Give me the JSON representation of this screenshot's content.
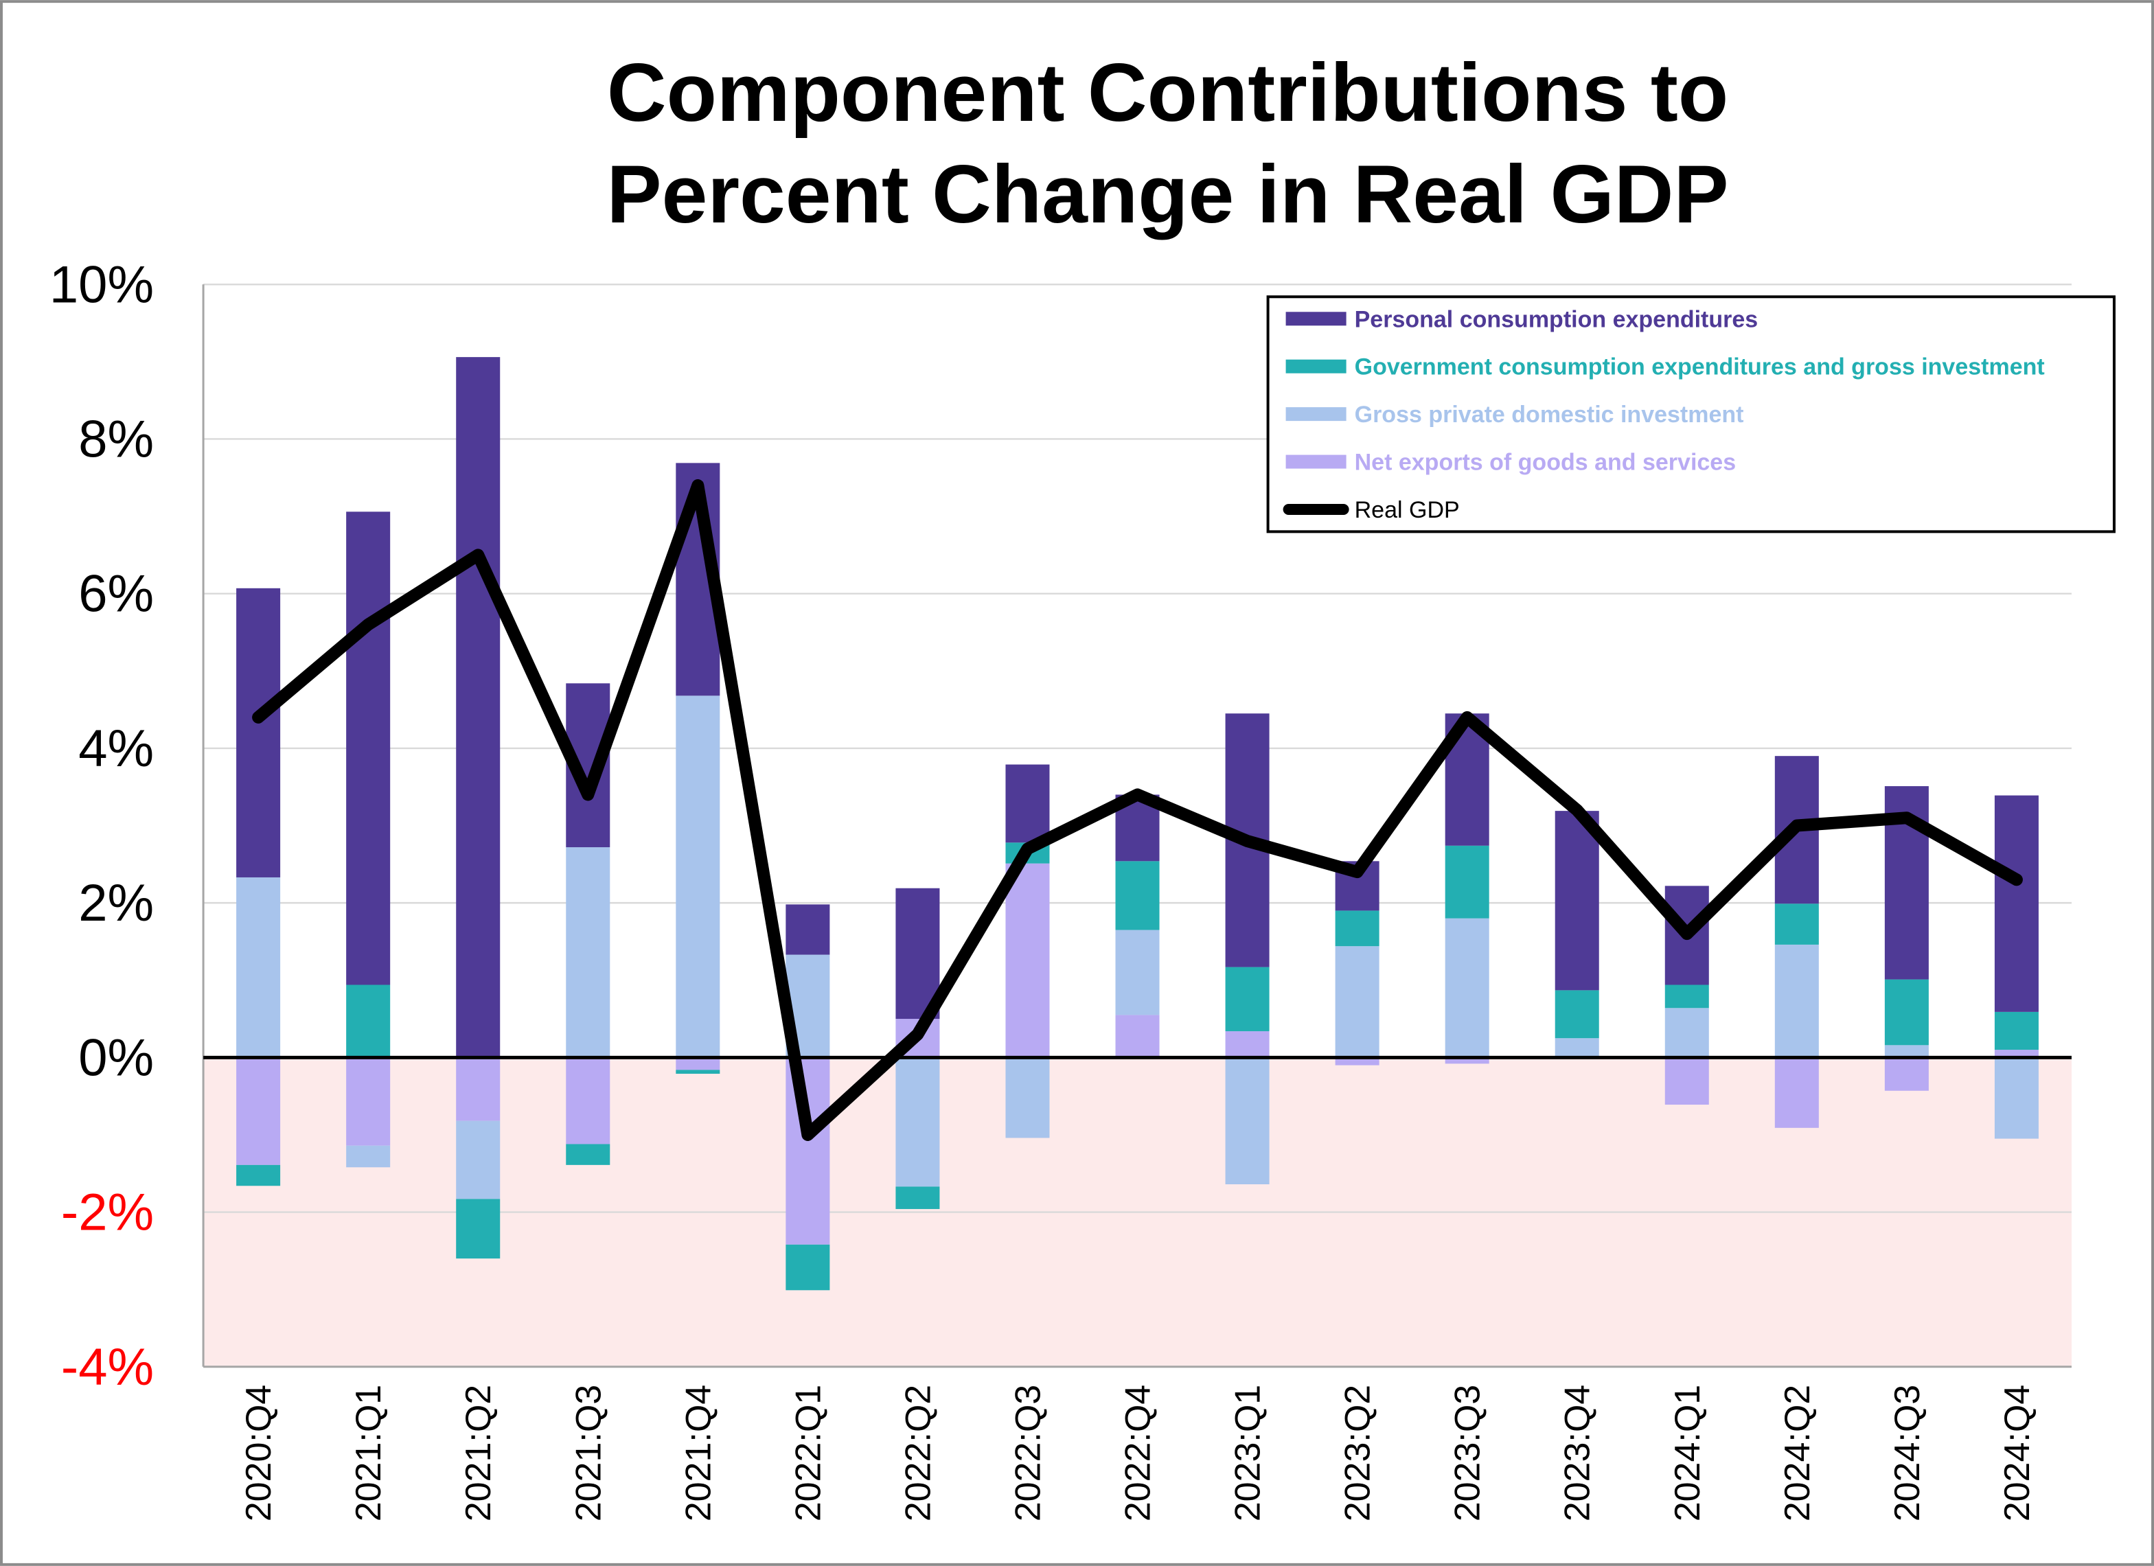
{
  "chart_data": {
    "type": "bar",
    "stacked": true,
    "title": [
      "Component Contributions to",
      "Percent Change in Real GDP"
    ],
    "xlabel": "",
    "ylabel": "",
    "ylim": [
      -4,
      10
    ],
    "yticks": [
      -4,
      -2,
      0,
      2,
      4,
      6,
      8,
      10
    ],
    "ytick_labels": [
      "-4%",
      "-2%",
      "0%",
      "2%",
      "4%",
      "6%",
      "8%",
      "10%"
    ],
    "negative_tick_color": "#FF0000",
    "negative_region_color": "#FDEAEA",
    "grid": true,
    "legend_position": "top-right",
    "categories": [
      "2020:Q4",
      "2021:Q1",
      "2021:Q2",
      "2021:Q3",
      "2021:Q4",
      "2022:Q1",
      "2022:Q2",
      "2022:Q3",
      "2022:Q4",
      "2023:Q1",
      "2023:Q2",
      "2023:Q3",
      "2023:Q4",
      "2024:Q1",
      "2024:Q2",
      "2024:Q3",
      "2024:Q4"
    ],
    "series": [
      {
        "name": "Personal consumption expenditures",
        "kind": "bar",
        "color": "#4F3A96",
        "values": [
          3.74,
          6.12,
          9.06,
          2.12,
          3.01,
          0.65,
          1.69,
          1.01,
          0.86,
          3.28,
          0.64,
          1.71,
          2.32,
          1.28,
          1.91,
          2.5,
          2.8
        ]
      },
      {
        "name": "Government consumption expenditures and gross investment",
        "kind": "bar",
        "color": "#23AFB2",
        "values": [
          -0.27,
          0.94,
          -0.77,
          -0.27,
          -0.05,
          -0.59,
          -0.29,
          0.27,
          0.89,
          0.83,
          0.46,
          0.94,
          0.62,
          0.3,
          0.53,
          0.85,
          0.49
        ]
      },
      {
        "name": "Gross private domestic investment",
        "kind": "bar",
        "color": "#A8C4EC",
        "values": [
          2.33,
          -0.28,
          -1.01,
          2.72,
          4.68,
          1.33,
          -1.67,
          -1.04,
          1.1,
          -1.64,
          1.44,
          1.8,
          0.25,
          0.64,
          1.46,
          0.16,
          -1.05
        ]
      },
      {
        "name": "Net exports of goods and services",
        "kind": "bar",
        "color": "#B8AAF3",
        "values": [
          -1.39,
          -1.14,
          -0.82,
          -1.12,
          -0.16,
          -2.42,
          0.5,
          2.51,
          0.55,
          0.34,
          -0.1,
          -0.08,
          0.0,
          -0.61,
          -0.91,
          -0.43,
          0.1
        ]
      },
      {
        "name": "Real GDP",
        "kind": "line",
        "color": "#000000",
        "values": [
          4.4,
          5.6,
          6.5,
          3.4,
          7.4,
          -1.0,
          0.3,
          2.7,
          3.4,
          2.8,
          2.4,
          4.4,
          3.2,
          1.6,
          3.0,
          3.1,
          2.3
        ]
      }
    ]
  }
}
